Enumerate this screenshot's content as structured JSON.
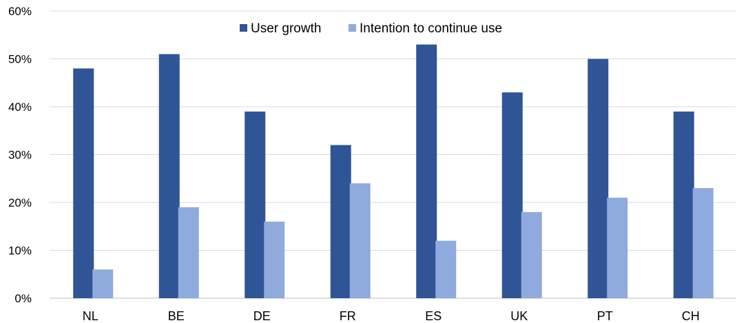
{
  "chart_data": {
    "type": "bar",
    "title": "",
    "xlabel": "",
    "ylabel": "",
    "categories": [
      "NL",
      "BE",
      "DE",
      "FR",
      "ES",
      "UK",
      "PT",
      "CH"
    ],
    "series": [
      {
        "name": "User growth",
        "color": "#2f5597",
        "values": [
          48,
          51,
          39,
          32,
          53,
          43,
          50,
          39
        ]
      },
      {
        "name": "Intention to continue use",
        "color": "#8faadc",
        "values": [
          6,
          19,
          16,
          24,
          12,
          18,
          21,
          23
        ]
      }
    ],
    "ylim": [
      0,
      60
    ],
    "y_ticks": [
      "0%",
      "10%",
      "20%",
      "30%",
      "40%",
      "50%",
      "60%"
    ],
    "y_tick_values": [
      0,
      10,
      20,
      30,
      40,
      50,
      60
    ],
    "grid": true,
    "legend_position": "top"
  }
}
